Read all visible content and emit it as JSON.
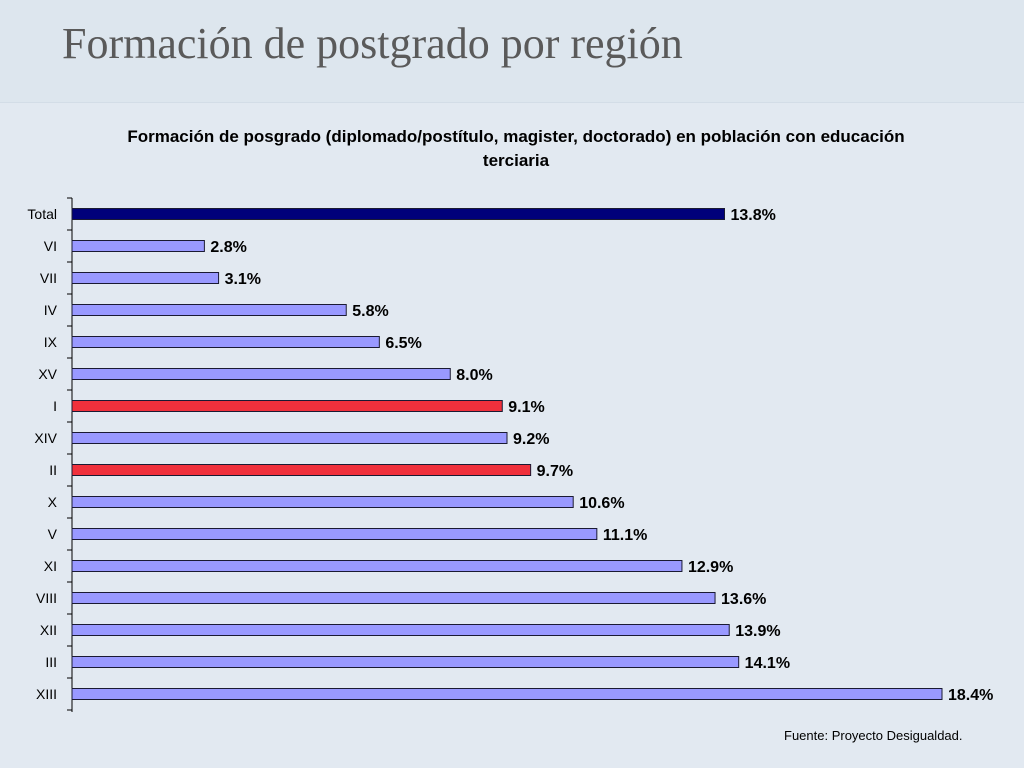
{
  "slide": {
    "title": "Formación de postgrado por región",
    "source": "Fuente: Proyecto Desigualdad."
  },
  "colors": {
    "total": "#00007a",
    "highlight": "#f0303c",
    "default": "#9999ff",
    "border": "#1a1a33"
  },
  "chart_data": {
    "type": "bar",
    "orientation": "horizontal",
    "title": "Formación de posgrado (diplomado/postítulo, magister, doctorado) en población con educación terciaria",
    "categories": [
      "Total",
      "VI",
      "VII",
      "IV",
      "IX",
      "XV",
      "I",
      "XIV",
      "II",
      "X",
      "V",
      "XI",
      "VIII",
      "XII",
      "III",
      "XIII"
    ],
    "values": [
      13.8,
      2.8,
      3.1,
      5.8,
      6.5,
      8.0,
      9.1,
      9.2,
      9.7,
      10.6,
      11.1,
      12.9,
      13.6,
      13.9,
      14.1,
      18.4
    ],
    "labels": [
      "13.8%",
      "2.8%",
      "3.1%",
      "5.8%",
      "6.5%",
      "8.0%",
      "9.1%",
      "9.2%",
      "9.7%",
      "10.6%",
      "11.1%",
      "12.9%",
      "13.6%",
      "13.9%",
      "14.1%",
      "18.4%"
    ],
    "bar_colors": [
      "total",
      "default",
      "default",
      "default",
      "default",
      "default",
      "highlight",
      "default",
      "highlight",
      "default",
      "default",
      "default",
      "default",
      "default",
      "default",
      "default"
    ],
    "xlim": [
      0,
      18.4
    ],
    "grid": false,
    "legend": "none"
  }
}
